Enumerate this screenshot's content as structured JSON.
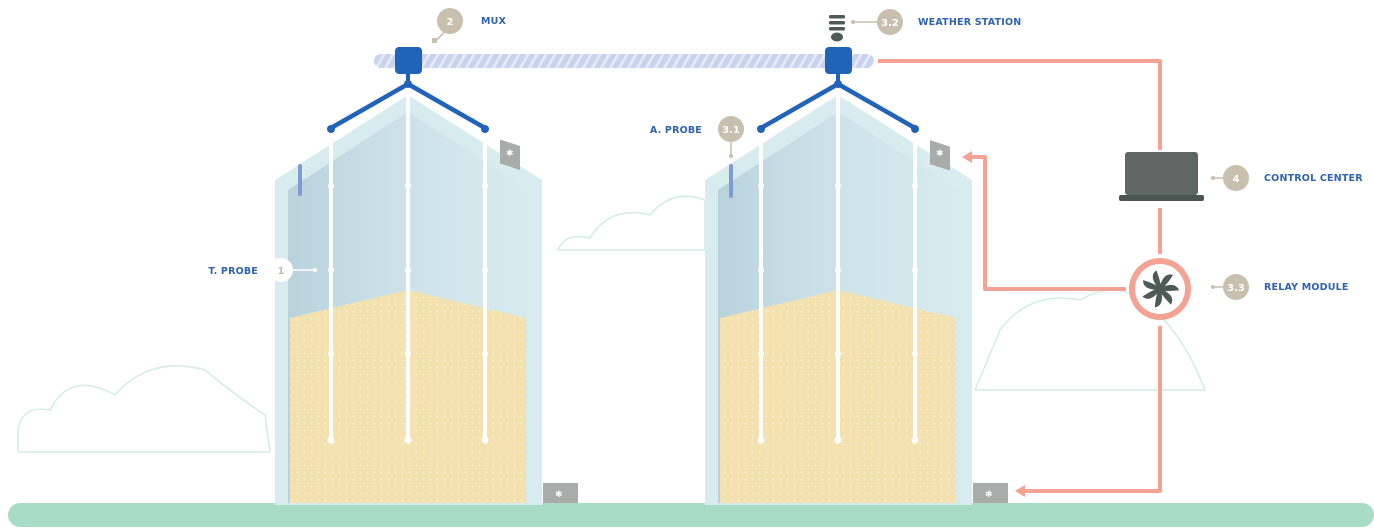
{
  "labels": {
    "t_probe": "T. PROBE",
    "mux": "MUX",
    "a_probe": "A. PROBE",
    "weather_station": "WEATHER STATION",
    "control_center": "CONTROL CENTER",
    "relay_module": "RELAY MODULE"
  },
  "badges": {
    "t_probe": "1",
    "mux": "2",
    "a_probe": "3.1",
    "weather_station": "3.2",
    "relay_module": "3.3",
    "control_center": "4"
  },
  "colors": {
    "label_blue": "#2f63ad",
    "badge_tan": "#c8bfae",
    "link_salmon": "#f4a294",
    "cable_blue": "#2163b8",
    "grain": "#f3e2b0",
    "ground": "#a8dcc4"
  },
  "icons": {
    "weather_station": "weather-station-icon",
    "control_center": "laptop-icon",
    "relay_module": "fan-icon",
    "aerator": "aerator-fan-icon"
  }
}
